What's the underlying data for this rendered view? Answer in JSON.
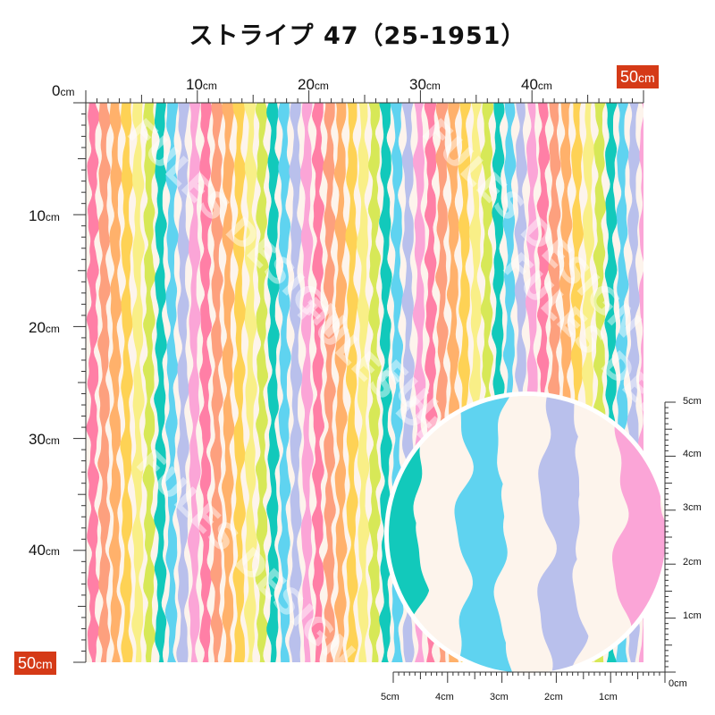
{
  "title": "ストライプ 47（25-1951）",
  "ruler": {
    "top_labels": [
      {
        "num": "0",
        "unit": "cm"
      },
      {
        "num": "10",
        "unit": "cm"
      },
      {
        "num": "20",
        "unit": "cm"
      },
      {
        "num": "30",
        "unit": "cm"
      },
      {
        "num": "40",
        "unit": "cm"
      }
    ],
    "top_end_badge": {
      "num": "50",
      "unit": "cm"
    },
    "left_labels": [
      {
        "num": "10",
        "unit": "cm"
      },
      {
        "num": "20",
        "unit": "cm"
      },
      {
        "num": "30",
        "unit": "cm"
      },
      {
        "num": "40",
        "unit": "cm"
      }
    ],
    "left_end_badge": {
      "num": "50",
      "unit": "cm"
    }
  },
  "zoom": {
    "right_labels": [
      "5cm",
      "4cm",
      "3cm",
      "2cm",
      "1cm",
      "0cm"
    ],
    "bottom_labels": [
      "5cm",
      "4cm",
      "3cm",
      "2cm",
      "1cm"
    ]
  },
  "watermark": "FULES DESIGN",
  "colors": {
    "background": "#fdf4ec",
    "stripes": [
      "#ff7fa6",
      "#fda07e",
      "#ffb16b",
      "#fed255",
      "#f9ef87",
      "#d7e857",
      "#12c9bb",
      "#5fd3f0",
      "#b9c0ec",
      "#fba5d7"
    ],
    "badge": "#d53a17"
  },
  "zoom_stripes": [
    "#12c9bb",
    "#fdf4ec",
    "#5fd3f0",
    "#fdf4ec",
    "#b9c0ec",
    "#fdf4ec",
    "#fba5d7"
  ]
}
